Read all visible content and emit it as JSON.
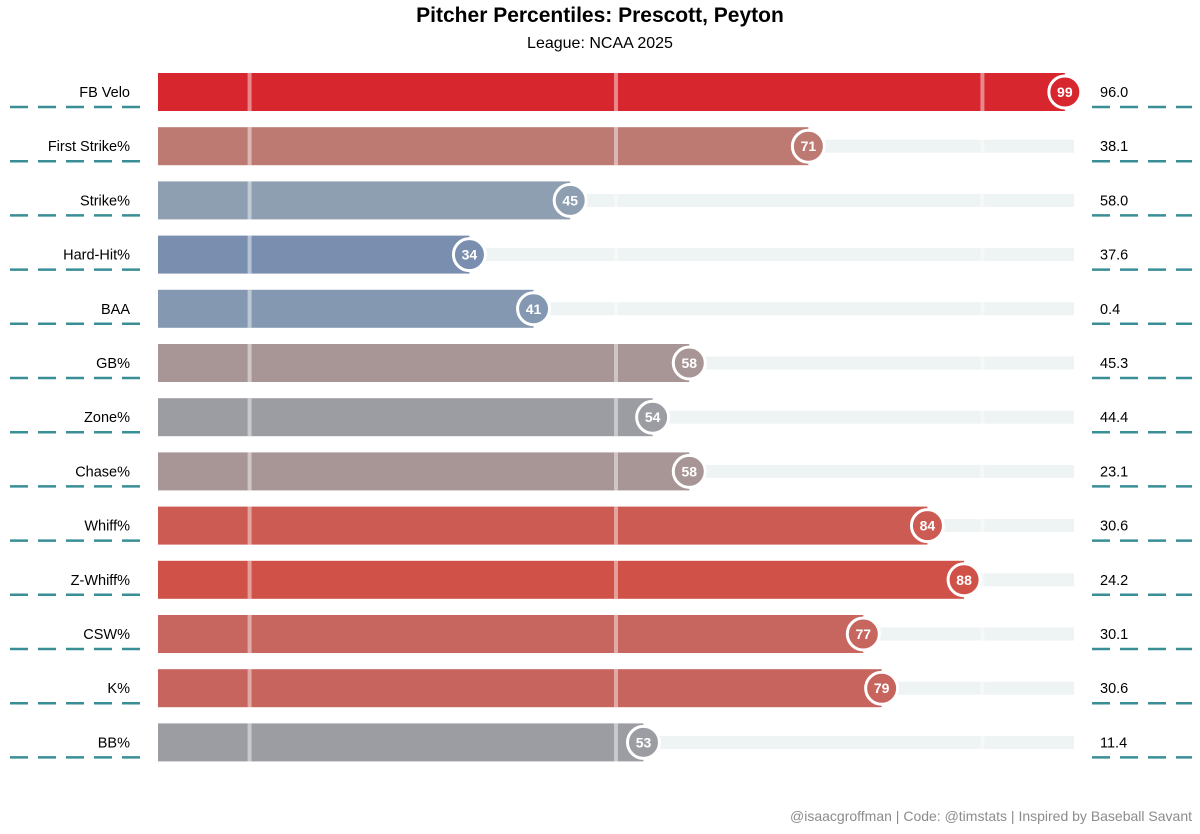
{
  "title": "Pitcher Percentiles: Prescott, Peyton",
  "subtitle": "League: NCAA 2025",
  "caption": "@isaacgroffman | Code: @timstats | Inspired by Baseball Savant",
  "colors": {
    "track": "#eef3f3",
    "dash": "#3a8f96",
    "gridline": "#ffffff"
  },
  "chart_data": {
    "type": "bar",
    "orientation": "horizontal",
    "xlim": [
      0,
      100
    ],
    "reference_lines": [
      10,
      50,
      90
    ],
    "categories": [
      "FB Velo",
      "First Strike%",
      "Strike%",
      "Hard-Hit%",
      "BAA",
      "GB%",
      "Zone%",
      "Chase%",
      "Whiff%",
      "Z-Whiff%",
      "CSW%",
      "K%",
      "BB%"
    ],
    "series": [
      {
        "values": [
          99,
          71,
          45,
          34,
          41,
          58,
          54,
          58,
          84,
          88,
          77,
          79,
          53
        ],
        "stat_values": [
          "96.0",
          "38.1",
          "58.0",
          "37.6",
          "0.4",
          "45.3",
          "44.4",
          "23.1",
          "30.6",
          "24.2",
          "30.1",
          "30.6",
          "11.4"
        ],
        "colors": [
          "#d7262d",
          "#bd7a73",
          "#8d9fb0",
          "#7a8fb0",
          "#8499b1",
          "#a89595",
          "#9c9da3",
          "#a89595",
          "#cb5b53",
          "#d05148",
          "#c6665f",
          "#c6645d",
          "#9c9da3"
        ]
      }
    ]
  }
}
